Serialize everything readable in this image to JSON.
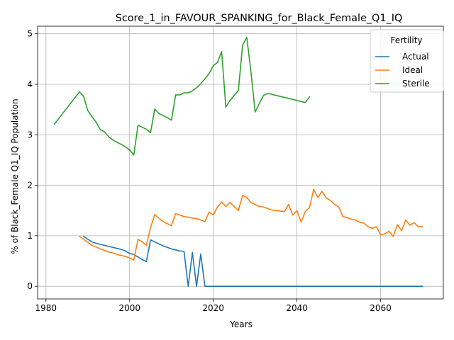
{
  "chart_data": {
    "type": "line",
    "title": "Score_1_in_FAVOUR_SPANKING_for_Black_Female_Q1_IQ",
    "xlabel": "Years",
    "ylabel": "% of Black_Female Q1_IQ Population",
    "xlim": [
      1978,
      2075
    ],
    "ylim": [
      -0.25,
      5.15
    ],
    "xticks": [
      1980,
      2000,
      2020,
      2040,
      2060
    ],
    "yticks": [
      0,
      1,
      2,
      3,
      4,
      5
    ],
    "grid": true,
    "legend": {
      "title": "Fertility",
      "placement": "top-right"
    },
    "series": [
      {
        "name": "Actual",
        "color": "#1f77b4",
        "points": [
          [
            1989,
            0.99
          ],
          [
            1990,
            0.93
          ],
          [
            1991,
            0.88
          ],
          [
            1992,
            0.85
          ],
          [
            1993,
            0.83
          ],
          [
            1994,
            0.81
          ],
          [
            1995,
            0.79
          ],
          [
            1996,
            0.77
          ],
          [
            1997,
            0.75
          ],
          [
            1998,
            0.73
          ],
          [
            1999,
            0.7
          ],
          [
            2000,
            0.65
          ],
          [
            2001,
            0.63
          ],
          [
            2002,
            0.58
          ],
          [
            2003,
            0.53
          ],
          [
            2004,
            0.49
          ],
          [
            2005,
            0.92
          ],
          [
            2006,
            0.88
          ],
          [
            2007,
            0.84
          ],
          [
            2008,
            0.8
          ],
          [
            2009,
            0.77
          ],
          [
            2010,
            0.74
          ],
          [
            2011,
            0.72
          ],
          [
            2012,
            0.7
          ],
          [
            2013,
            0.69
          ],
          [
            2014,
            0.0
          ],
          [
            2015,
            0.67
          ],
          [
            2016,
            0.0
          ],
          [
            2017,
            0.64
          ],
          [
            2018,
            0.0
          ],
          [
            2030,
            0.0
          ],
          [
            2050,
            0.0
          ],
          [
            2070,
            0.0
          ]
        ]
      },
      {
        "name": "Ideal",
        "color": "#ff7f0e",
        "points": [
          [
            1988,
            0.99
          ],
          [
            1989,
            0.93
          ],
          [
            1990,
            0.87
          ],
          [
            1991,
            0.81
          ],
          [
            1992,
            0.78
          ],
          [
            1993,
            0.74
          ],
          [
            1994,
            0.71
          ],
          [
            1995,
            0.68
          ],
          [
            1996,
            0.66
          ],
          [
            1997,
            0.63
          ],
          [
            1998,
            0.61
          ],
          [
            1999,
            0.59
          ],
          [
            2000,
            0.56
          ],
          [
            2001,
            0.52
          ],
          [
            2002,
            0.93
          ],
          [
            2003,
            0.88
          ],
          [
            2004,
            0.81
          ],
          [
            2005,
            1.16
          ],
          [
            2006,
            1.42
          ],
          [
            2007,
            1.35
          ],
          [
            2008,
            1.28
          ],
          [
            2009,
            1.24
          ],
          [
            2010,
            1.2
          ],
          [
            2011,
            1.44
          ],
          [
            2012,
            1.41
          ],
          [
            2013,
            1.38
          ],
          [
            2014,
            1.37
          ],
          [
            2015,
            1.35
          ],
          [
            2016,
            1.34
          ],
          [
            2017,
            1.31
          ],
          [
            2018,
            1.28
          ],
          [
            2019,
            1.47
          ],
          [
            2020,
            1.41
          ],
          [
            2021,
            1.57
          ],
          [
            2022,
            1.67
          ],
          [
            2023,
            1.58
          ],
          [
            2024,
            1.66
          ],
          [
            2025,
            1.58
          ],
          [
            2026,
            1.5
          ],
          [
            2027,
            1.8
          ],
          [
            2028,
            1.76
          ],
          [
            2029,
            1.66
          ],
          [
            2030,
            1.62
          ],
          [
            2031,
            1.58
          ],
          [
            2032,
            1.57
          ],
          [
            2033,
            1.54
          ],
          [
            2034,
            1.51
          ],
          [
            2035,
            1.5
          ],
          [
            2036,
            1.49
          ],
          [
            2037,
            1.48
          ],
          [
            2038,
            1.62
          ],
          [
            2039,
            1.41
          ],
          [
            2040,
            1.5
          ],
          [
            2041,
            1.27
          ],
          [
            2042,
            1.48
          ],
          [
            2043,
            1.56
          ],
          [
            2044,
            1.92
          ],
          [
            2045,
            1.76
          ],
          [
            2046,
            1.88
          ],
          [
            2047,
            1.75
          ],
          [
            2048,
            1.7
          ],
          [
            2049,
            1.62
          ],
          [
            2050,
            1.57
          ],
          [
            2051,
            1.38
          ],
          [
            2052,
            1.36
          ],
          [
            2053,
            1.33
          ],
          [
            2054,
            1.31
          ],
          [
            2055,
            1.27
          ],
          [
            2056,
            1.25
          ],
          [
            2057,
            1.18
          ],
          [
            2058,
            1.15
          ],
          [
            2059,
            1.18
          ],
          [
            2060,
            1.02
          ],
          [
            2061,
            1.04
          ],
          [
            2062,
            1.09
          ],
          [
            2063,
            0.99
          ],
          [
            2064,
            1.22
          ],
          [
            2065,
            1.1
          ],
          [
            2066,
            1.31
          ],
          [
            2067,
            1.21
          ],
          [
            2068,
            1.26
          ],
          [
            2069,
            1.18
          ],
          [
            2070,
            1.18
          ]
        ]
      },
      {
        "name": "Sterile",
        "color": "#2ca02c",
        "points": [
          [
            1982,
            3.21
          ],
          [
            1988,
            3.85
          ],
          [
            1989,
            3.76
          ],
          [
            1990,
            3.48
          ],
          [
            1991,
            3.36
          ],
          [
            1992,
            3.25
          ],
          [
            1993,
            3.1
          ],
          [
            1994,
            3.06
          ],
          [
            1995,
            2.96
          ],
          [
            1996,
            2.9
          ],
          [
            1997,
            2.85
          ],
          [
            1998,
            2.81
          ],
          [
            1999,
            2.76
          ],
          [
            2000,
            2.7
          ],
          [
            2001,
            2.6
          ],
          [
            2002,
            3.19
          ],
          [
            2003,
            3.15
          ],
          [
            2004,
            3.11
          ],
          [
            2005,
            3.04
          ],
          [
            2006,
            3.51
          ],
          [
            2007,
            3.42
          ],
          [
            2008,
            3.38
          ],
          [
            2009,
            3.34
          ],
          [
            2010,
            3.29
          ],
          [
            2011,
            3.79
          ],
          [
            2012,
            3.79
          ],
          [
            2013,
            3.83
          ],
          [
            2014,
            3.83
          ],
          [
            2015,
            3.87
          ],
          [
            2016,
            3.93
          ],
          [
            2017,
            4.01
          ],
          [
            2018,
            4.11
          ],
          [
            2019,
            4.21
          ],
          [
            2020,
            4.37
          ],
          [
            2021,
            4.43
          ],
          [
            2022,
            4.65
          ],
          [
            2023,
            3.55
          ],
          [
            2024,
            3.68
          ],
          [
            2025,
            3.78
          ],
          [
            2026,
            3.88
          ],
          [
            2027,
            4.77
          ],
          [
            2028,
            4.93
          ],
          [
            2029,
            4.25
          ],
          [
            2030,
            3.45
          ],
          [
            2031,
            3.62
          ],
          [
            2032,
            3.78
          ],
          [
            2033,
            3.82
          ],
          [
            2042,
            3.64
          ],
          [
            2043,
            3.75
          ]
        ]
      }
    ]
  }
}
